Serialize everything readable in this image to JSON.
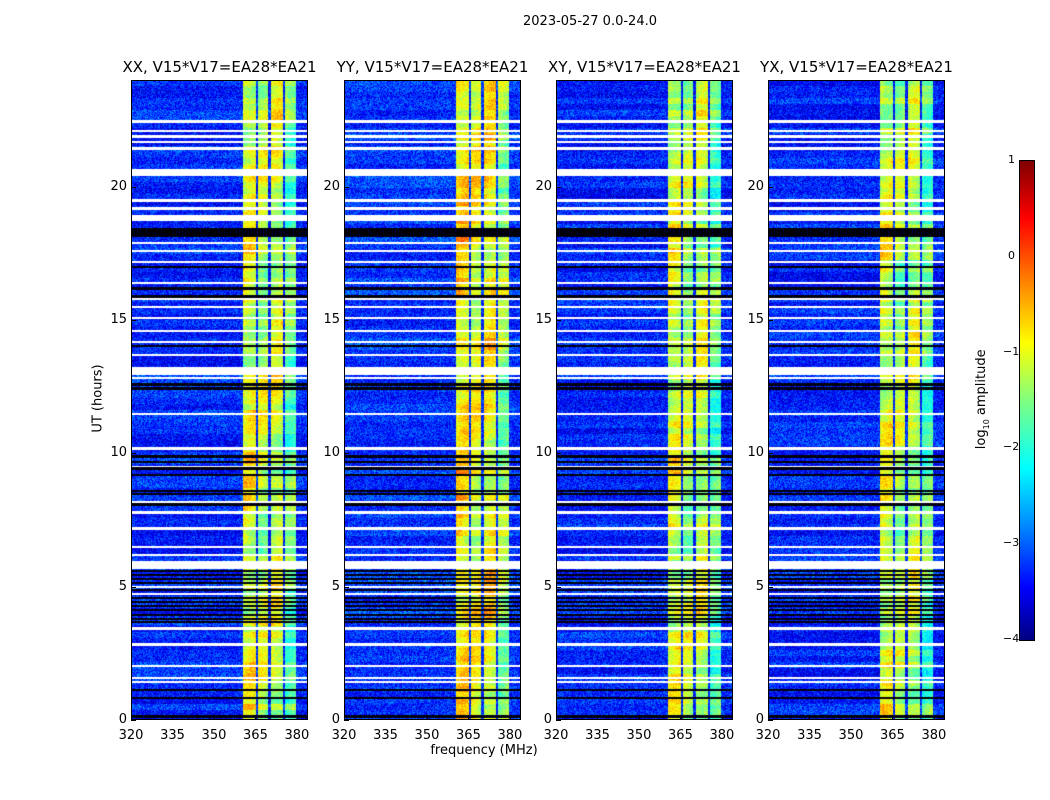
{
  "suptitle": "2023-05-27 0.0-24.0",
  "colors": {
    "flag_white": "#ffffff",
    "flag_black": "#000000"
  },
  "chart_data": {
    "type": "heatmap",
    "title": "2023-05-27 0.0-24.0",
    "xlabel": "frequency (MHz)",
    "ylabel": "UT (hours)",
    "xlim": [
      320,
      384
    ],
    "ylim": [
      0,
      24
    ],
    "xticks": [
      "320",
      "335",
      "350",
      "365",
      "380"
    ],
    "xtick_values": [
      320,
      335,
      350,
      365,
      380
    ],
    "yticks": [
      "0",
      "5",
      "10",
      "15",
      "20"
    ],
    "ytick_values": [
      0,
      5,
      10,
      15,
      20
    ],
    "colormap": "jet",
    "colorbar": {
      "label_main": "log",
      "label_sub": "10",
      "label_rest": " amplitude",
      "range": [
        -4,
        1
      ],
      "ticks": [
        "1",
        "0",
        "−1",
        "−2",
        "−3",
        "−4"
      ],
      "tick_values": [
        1,
        0,
        -1,
        -2,
        -3,
        -4
      ]
    },
    "background_log_amp": -3.2,
    "bright_bands_mhz": [
      [
        360.4,
        365.1,
        -1.0
      ],
      [
        365.8,
        369.5,
        -1.2
      ],
      [
        370.5,
        374.9,
        -1.1
      ],
      [
        375.6,
        379.6,
        -1.6
      ]
    ],
    "flagged_white_hours": [
      [
        22.45,
        0.08
      ],
      [
        22.1,
        0.06
      ],
      [
        21.9,
        0.06
      ],
      [
        21.7,
        0.06
      ],
      [
        21.45,
        0.06
      ],
      [
        20.55,
        0.2
      ],
      [
        19.5,
        0.06
      ],
      [
        19.2,
        0.06
      ],
      [
        18.85,
        0.18
      ],
      [
        17.9,
        0.06
      ],
      [
        17.6,
        0.06
      ],
      [
        17.2,
        0.06
      ],
      [
        16.4,
        0.06
      ],
      [
        15.8,
        0.06
      ],
      [
        15.5,
        0.06
      ],
      [
        15.1,
        0.06
      ],
      [
        14.6,
        0.06
      ],
      [
        14.2,
        0.06
      ],
      [
        13.7,
        0.06
      ],
      [
        13.1,
        0.25
      ],
      [
        12.85,
        0.06
      ],
      [
        11.5,
        0.06
      ],
      [
        10.2,
        0.08
      ],
      [
        9.5,
        0.06
      ],
      [
        8.2,
        0.06
      ],
      [
        7.8,
        0.06
      ],
      [
        7.2,
        0.06
      ],
      [
        6.5,
        0.06
      ],
      [
        6.2,
        0.06
      ],
      [
        5.95,
        0.06
      ],
      [
        5.8,
        0.2
      ],
      [
        5.0,
        0.06
      ],
      [
        4.75,
        0.06
      ],
      [
        3.45,
        0.06
      ],
      [
        2.85,
        0.06
      ],
      [
        2.05,
        0.06
      ],
      [
        1.6,
        0.06
      ],
      [
        1.45,
        0.06
      ]
    ],
    "flagged_black_hours": [
      [
        18.3,
        0.3
      ],
      [
        17.0,
        0.04
      ],
      [
        16.2,
        0.05
      ],
      [
        15.9,
        0.04
      ],
      [
        14.05,
        0.04
      ],
      [
        12.6,
        0.05
      ],
      [
        12.45,
        0.04
      ],
      [
        9.9,
        0.05
      ],
      [
        9.7,
        0.04
      ],
      [
        9.45,
        0.04
      ],
      [
        9.2,
        0.04
      ],
      [
        8.6,
        0.04
      ],
      [
        8.5,
        0.04
      ],
      [
        8.1,
        0.04
      ],
      [
        5.6,
        0.05
      ],
      [
        5.45,
        0.05
      ],
      [
        5.3,
        0.05
      ],
      [
        5.15,
        0.05
      ],
      [
        4.9,
        0.05
      ],
      [
        4.6,
        0.05
      ],
      [
        4.45,
        0.05
      ],
      [
        4.3,
        0.05
      ],
      [
        4.15,
        0.04
      ],
      [
        3.95,
        0.05
      ],
      [
        3.8,
        0.05
      ],
      [
        3.7,
        0.04
      ],
      [
        1.15,
        0.04
      ],
      [
        0.85,
        0.04
      ],
      [
        0.15,
        0.05
      ]
    ],
    "panels": [
      {
        "title": "XX, V15*V17=EA28*EA21",
        "offset": 0.0
      },
      {
        "title": "YY, V15*V17=EA28*EA21",
        "offset": 0.25
      },
      {
        "title": "XY, V15*V17=EA28*EA21",
        "offset": -0.05
      },
      {
        "title": "YX, V15*V17=EA28*EA21",
        "offset": -0.1
      }
    ]
  }
}
